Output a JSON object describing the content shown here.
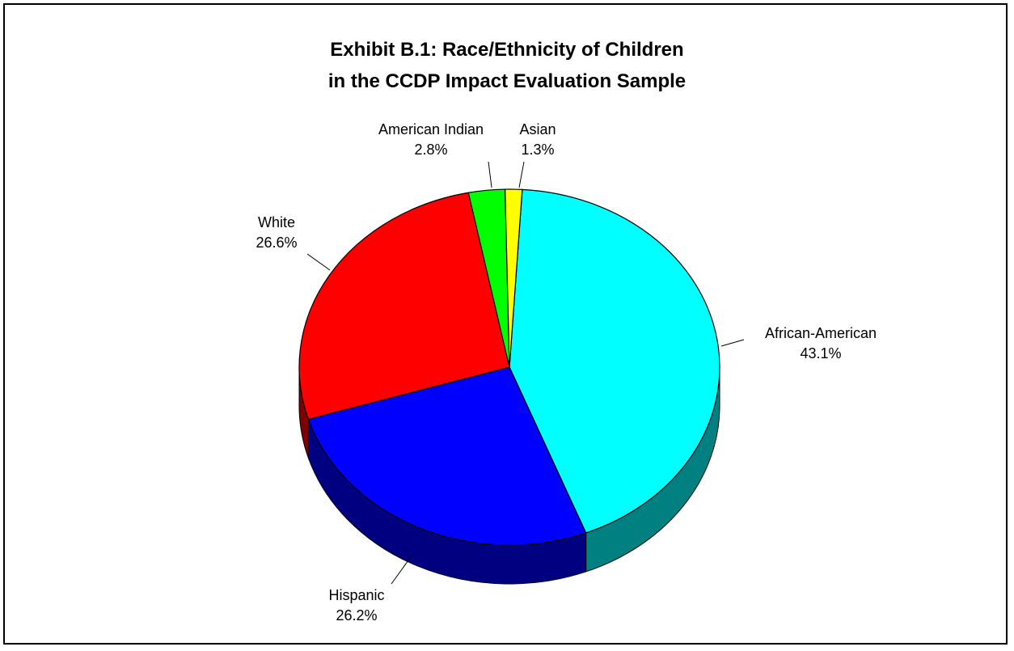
{
  "chart_data": {
    "type": "pie",
    "style": "3d",
    "title_line1": "Exhibit B.1:  Race/Ethnicity of Children",
    "title_line2": "in the CCDP Impact Evaluation Sample",
    "slices": [
      {
        "label": "African-American",
        "value_label": "43.1%",
        "value": 43.1,
        "color": "#00ffff",
        "side_color": "#008080"
      },
      {
        "label": "Hispanic",
        "value_label": "26.2%",
        "value": 26.2,
        "color": "#0000ff",
        "side_color": "#000080"
      },
      {
        "label": "White",
        "value_label": "26.6%",
        "value": 26.6,
        "color": "#ff0000",
        "side_color": "#800000"
      },
      {
        "label": "American Indian",
        "value_label": "2.8%",
        "value": 2.8,
        "color": "#00ff00",
        "side_color": "#008000"
      },
      {
        "label": "Asian",
        "value_label": "1.3%",
        "value": 1.3,
        "color": "#ffff00",
        "side_color": "#808000"
      }
    ],
    "legend": "none",
    "grid": false
  }
}
